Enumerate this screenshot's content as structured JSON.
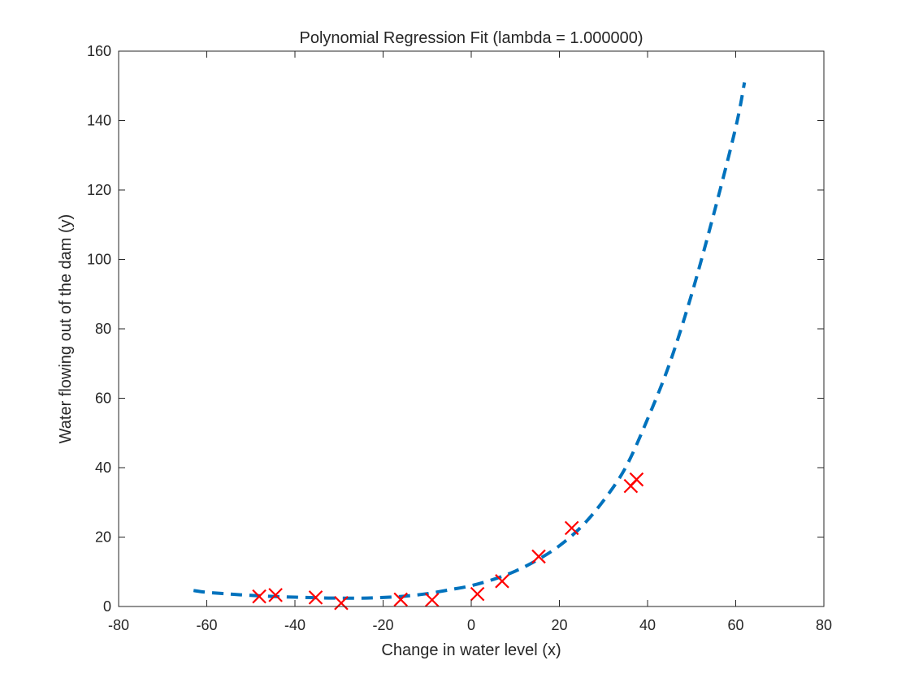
{
  "chart_data": {
    "type": "scatter",
    "title": "Polynomial Regression Fit (lambda = 1.000000)",
    "xlabel": "Change in water level (x)",
    "ylabel": "Water flowing out of the dam (y)",
    "xlim": [
      -80,
      80
    ],
    "ylim": [
      0,
      160
    ],
    "xticks": [
      -80,
      -60,
      -40,
      -20,
      0,
      20,
      40,
      60,
      80
    ],
    "yticks": [
      0,
      20,
      40,
      60,
      80,
      100,
      120,
      140,
      160
    ],
    "grid": false,
    "colors": {
      "fit": "#0072BD",
      "points": "#FF0000",
      "axes": "#262626"
    },
    "points": {
      "marker": "x",
      "x": [
        -48.1,
        -44.4,
        -35.3,
        -29.5,
        -16.0,
        -8.9,
        1.4,
        7.0,
        15.3,
        22.8,
        36.2,
        37.5
      ],
      "y": [
        2.9,
        3.3,
        2.6,
        1.0,
        2.0,
        1.9,
        3.6,
        7.3,
        14.4,
        22.6,
        34.7,
        36.6
      ]
    },
    "fit_curve": {
      "style": "dashed",
      "x": [
        -63,
        -60,
        -55,
        -50,
        -45,
        -40,
        -35,
        -30,
        -25,
        -20,
        -15,
        -10,
        -5,
        0,
        5,
        10,
        15,
        20,
        25,
        30,
        35,
        40,
        45,
        50,
        55,
        60,
        62
      ],
      "y": [
        4.6,
        4.1,
        3.6,
        3.2,
        2.9,
        2.7,
        2.5,
        2.4,
        2.4,
        2.6,
        3.0,
        3.7,
        4.8,
        6.0,
        7.8,
        10.2,
        13.4,
        17.5,
        23.0,
        30.5,
        40.0,
        54.0,
        70.0,
        90.0,
        113.0,
        138.0,
        151.0
      ]
    }
  }
}
